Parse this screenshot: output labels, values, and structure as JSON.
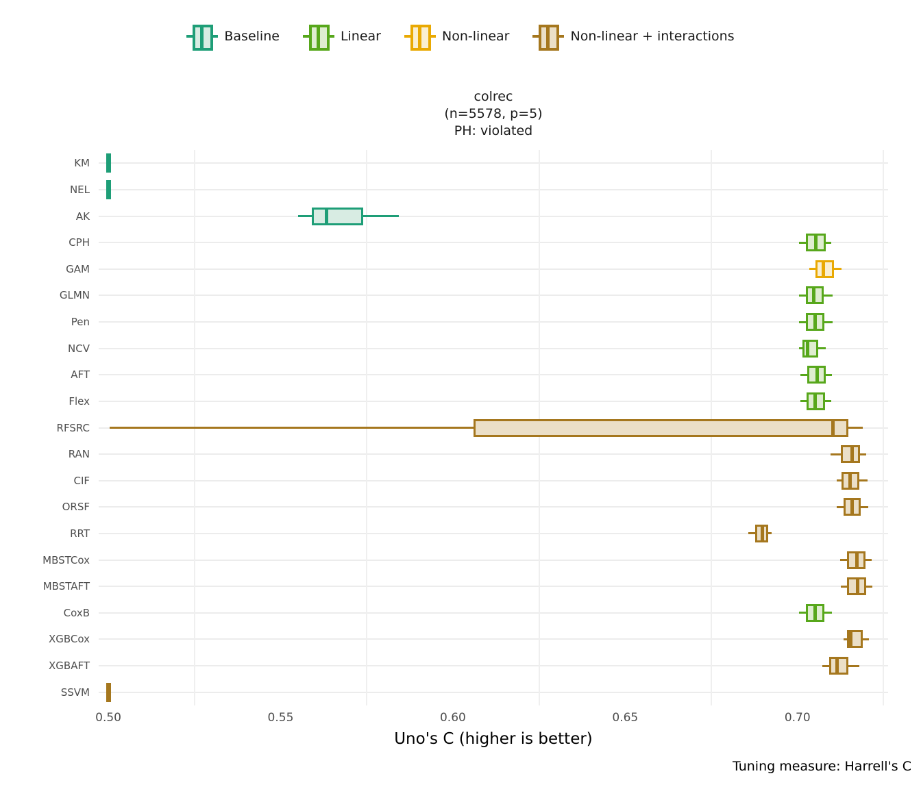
{
  "legend": {
    "items": [
      {
        "label": "Baseline",
        "group": "baseline"
      },
      {
        "label": "Linear",
        "group": "linear"
      },
      {
        "label": "Non-linear",
        "group": "nonlinear"
      },
      {
        "label": "Non-linear + interactions",
        "group": "nonlinear_interactions"
      }
    ]
  },
  "title": {
    "line1": "colrec",
    "line2": "(n=5578, p=5)",
    "line3": "PH: violated"
  },
  "axis": {
    "x_label": "Uno's C (higher is better)"
  },
  "caption": "Tuning measure: Harrell's C",
  "chart_data": {
    "type": "boxplot",
    "orientation": "horizontal",
    "title": "colrec (n=5578, p=5) PH: violated",
    "xlabel": "Uno's C (higher is better)",
    "x_axis": {
      "range": [
        0.4972,
        0.7263
      ],
      "ticks": [
        {
          "value": 0.5,
          "label": "0.50"
        },
        {
          "value": 0.55,
          "label": "0.55"
        },
        {
          "value": 0.6,
          "label": "0.60"
        },
        {
          "value": 0.65,
          "label": "0.65"
        },
        {
          "value": 0.7,
          "label": "0.70"
        }
      ],
      "minor_gridlines": [
        0.525,
        0.575,
        0.625,
        0.675,
        0.725
      ]
    },
    "groups": {
      "baseline": {
        "label": "Baseline",
        "stroke": "#1E9E77",
        "fill": "#D8ECE3"
      },
      "linear": {
        "label": "Linear",
        "stroke": "#57A71B",
        "fill": "#DFEDD0"
      },
      "nonlinear": {
        "label": "Non-linear",
        "stroke": "#E9A902",
        "fill": "#FAEFD0"
      },
      "nonlinear_interactions": {
        "label": "Non-linear + interactions",
        "stroke": "#A5771E",
        "fill": "#EBDFC7"
      }
    },
    "models": [
      {
        "label": "KM",
        "group": "baseline",
        "whisker_low": 0.5,
        "q1": 0.5,
        "median": 0.5,
        "q3": 0.5,
        "whisker_high": 0.5
      },
      {
        "label": "NEL",
        "group": "baseline",
        "whisker_low": 0.5,
        "q1": 0.5,
        "median": 0.5,
        "q3": 0.5,
        "whisker_high": 0.5
      },
      {
        "label": "AK",
        "group": "baseline",
        "whisker_low": 0.5551,
        "q1": 0.559,
        "median": 0.5634,
        "q3": 0.574,
        "whisker_high": 0.5844
      },
      {
        "label": "CPH",
        "group": "linear",
        "whisker_low": 0.7005,
        "q1": 0.7025,
        "median": 0.7054,
        "q3": 0.7082,
        "whisker_high": 0.7098
      },
      {
        "label": "GAM",
        "group": "nonlinear",
        "whisker_low": 0.7035,
        "q1": 0.7052,
        "median": 0.7075,
        "q3": 0.7106,
        "whisker_high": 0.7128
      },
      {
        "label": "GLMN",
        "group": "linear",
        "whisker_low": 0.7005,
        "q1": 0.7024,
        "median": 0.7047,
        "q3": 0.7077,
        "whisker_high": 0.7101
      },
      {
        "label": "Pen",
        "group": "linear",
        "whisker_low": 0.7005,
        "q1": 0.7025,
        "median": 0.7052,
        "q3": 0.7078,
        "whisker_high": 0.7102
      },
      {
        "label": "NCV",
        "group": "linear",
        "whisker_low": 0.7005,
        "q1": 0.7014,
        "median": 0.7029,
        "q3": 0.706,
        "whisker_high": 0.7083
      },
      {
        "label": "AFT",
        "group": "linear",
        "whisker_low": 0.7008,
        "q1": 0.7029,
        "median": 0.7057,
        "q3": 0.7082,
        "whisker_high": 0.71
      },
      {
        "label": "Flex",
        "group": "linear",
        "whisker_low": 0.7008,
        "q1": 0.7027,
        "median": 0.7052,
        "q3": 0.708,
        "whisker_high": 0.7097
      },
      {
        "label": "RFSRC",
        "group": "nonlinear_interactions",
        "whisker_low": 0.5003,
        "q1": 0.6059,
        "median": 0.7102,
        "q3": 0.7147,
        "whisker_high": 0.719
      },
      {
        "label": "RAN",
        "group": "nonlinear_interactions",
        "whisker_low": 0.7095,
        "q1": 0.7125,
        "median": 0.7159,
        "q3": 0.7181,
        "whisker_high": 0.7199
      },
      {
        "label": "CIF",
        "group": "nonlinear_interactions",
        "whisker_low": 0.7113,
        "q1": 0.7128,
        "median": 0.7152,
        "q3": 0.7179,
        "whisker_high": 0.7204
      },
      {
        "label": "ORSF",
        "group": "nonlinear_interactions",
        "whisker_low": 0.7113,
        "q1": 0.7133,
        "median": 0.7158,
        "q3": 0.7183,
        "whisker_high": 0.7205
      },
      {
        "label": "RRT",
        "group": "nonlinear_interactions",
        "whisker_low": 0.6858,
        "q1": 0.6878,
        "median": 0.6898,
        "q3": 0.6914,
        "whisker_high": 0.6925
      },
      {
        "label": "MBSTCox",
        "group": "nonlinear_interactions",
        "whisker_low": 0.7123,
        "q1": 0.7144,
        "median": 0.7172,
        "q3": 0.7197,
        "whisker_high": 0.7216
      },
      {
        "label": "MBSTAFT",
        "group": "nonlinear_interactions",
        "whisker_low": 0.7125,
        "q1": 0.7144,
        "median": 0.7174,
        "q3": 0.7199,
        "whisker_high": 0.7217
      },
      {
        "label": "CoxB",
        "group": "linear",
        "whisker_low": 0.7005,
        "q1": 0.7025,
        "median": 0.7051,
        "q3": 0.7078,
        "whisker_high": 0.71
      },
      {
        "label": "XGBCox",
        "group": "nonlinear_interactions",
        "whisker_low": 0.7133,
        "q1": 0.7143,
        "median": 0.7155,
        "q3": 0.7189,
        "whisker_high": 0.7207
      },
      {
        "label": "XGBAFT",
        "group": "nonlinear_interactions",
        "whisker_low": 0.7072,
        "q1": 0.7092,
        "median": 0.7115,
        "q3": 0.7148,
        "whisker_high": 0.718
      },
      {
        "label": "SSVM",
        "group": "nonlinear_interactions",
        "whisker_low": 0.5,
        "q1": 0.5,
        "median": 0.5,
        "q3": 0.5,
        "whisker_high": 0.5
      }
    ]
  }
}
